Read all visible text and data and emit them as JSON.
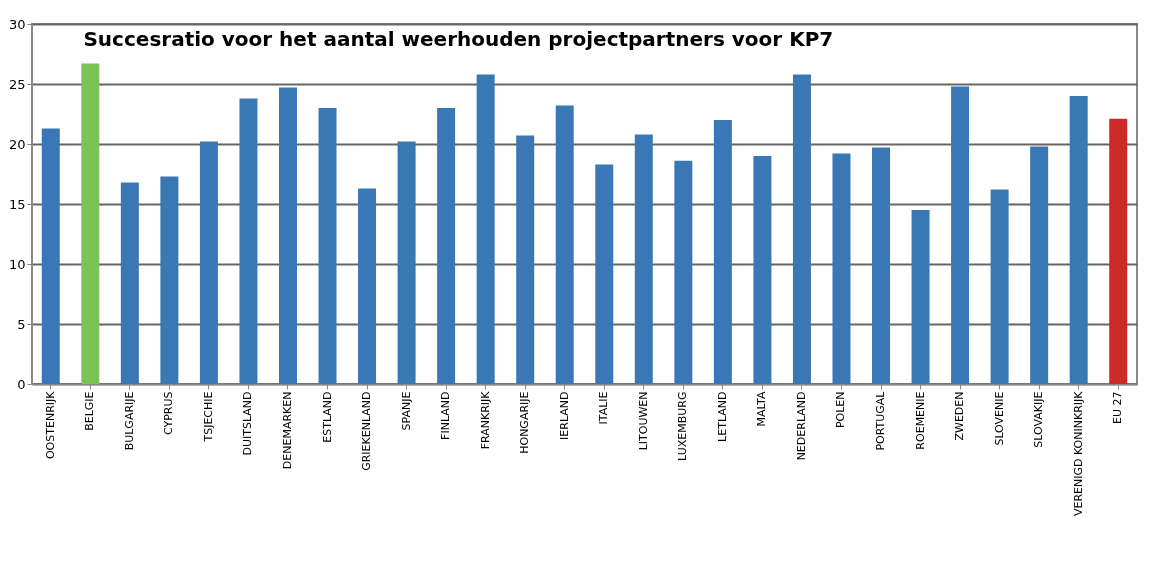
{
  "chart_data": {
    "type": "bar",
    "title": "Succesratio voor het aantal weerhouden projectpartners voor KP7",
    "categories": [
      "OOSTENRIJK",
      "BELGIE",
      "BULGARIJE",
      "CYPRUS",
      "TSJECHIE",
      "DUITSLAND",
      "DENEMARKEN",
      "ESTLAND",
      "GRIEKENLAND",
      "SPANJE",
      "FINLAND",
      "FRANKRIJK",
      "HONGARIJE",
      "IERLAND",
      "ITALIE",
      "LITOUWEN",
      "LUXEMBURG",
      "LETLAND",
      "MALTA",
      "NEDERLAND",
      "POLEN",
      "PORTUGAL",
      "ROEMENIE",
      "ZWEDEN",
      "SLOVENIE",
      "SLOVAKIJE",
      "VERENIGD KONINKRIJK",
      "EU 27"
    ],
    "values": [
      21.3,
      26.7,
      16.8,
      17.3,
      20.2,
      23.8,
      24.7,
      23,
      16.3,
      20.2,
      23,
      25.8,
      20.7,
      23.2,
      18.3,
      20.8,
      18.6,
      22,
      19,
      25.8,
      19.2,
      19.7,
      14.5,
      24.8,
      16.2,
      19.8,
      24,
      22.1
    ],
    "colors": [
      "#3a78b5",
      "#7cc257",
      "#3a78b5",
      "#3a78b5",
      "#3a78b5",
      "#3a78b5",
      "#3a78b5",
      "#3a78b5",
      "#3a78b5",
      "#3a78b5",
      "#3a78b5",
      "#3a78b5",
      "#3a78b5",
      "#3a78b5",
      "#3a78b5",
      "#3a78b5",
      "#3a78b5",
      "#3a78b5",
      "#3a78b5",
      "#3a78b5",
      "#3a78b5",
      "#3a78b5",
      "#3a78b5",
      "#3a78b5",
      "#3a78b5",
      "#3a78b5",
      "#3a78b5",
      "#cc2a27"
    ],
    "ylim": [
      0,
      30
    ],
    "yticks": [
      0,
      5,
      10,
      15,
      20,
      25,
      30
    ],
    "grid": "y"
  }
}
